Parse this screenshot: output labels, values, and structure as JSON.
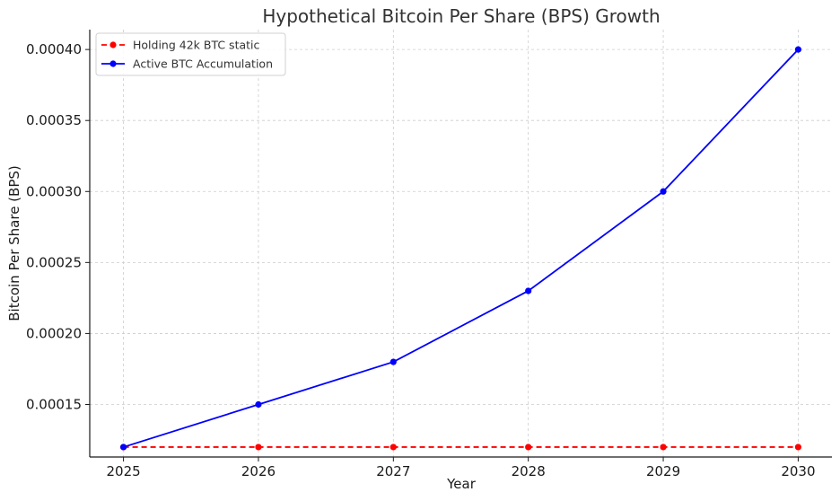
{
  "chart_data": {
    "type": "line",
    "title": "Hypothetical Bitcoin Per Share (BPS) Growth",
    "xlabel": "Year",
    "ylabel": "Bitcoin Per Share (BPS)",
    "x": [
      2025,
      2026,
      2027,
      2028,
      2029,
      2030
    ],
    "x_tick_labels": [
      "2025",
      "2026",
      "2027",
      "2028",
      "2029",
      "2030"
    ],
    "y_ticks": [
      0.00015,
      0.0002,
      0.00025,
      0.0003,
      0.00035,
      0.0004
    ],
    "y_tick_labels": [
      "0.00015",
      "0.00020",
      "0.00025",
      "0.00030",
      "0.00035",
      "0.00040"
    ],
    "xlim": [
      2024.75,
      2030.25
    ],
    "ylim": [
      0.000113,
      0.000414
    ],
    "grid": true,
    "legend_position": "top-left",
    "series": [
      {
        "name": "Holding 42k BTC static",
        "values": [
          0.00012,
          0.00012,
          0.00012,
          0.00012,
          0.00012,
          0.00012
        ],
        "color": "#ff0000",
        "line_style": "dashed",
        "marker": "circle"
      },
      {
        "name": "Active BTC Accumulation",
        "values": [
          0.00012,
          0.00015,
          0.00018,
          0.00023,
          0.0003,
          0.0004
        ],
        "color": "#0000ff",
        "line_style": "solid",
        "marker": "circle"
      }
    ]
  }
}
